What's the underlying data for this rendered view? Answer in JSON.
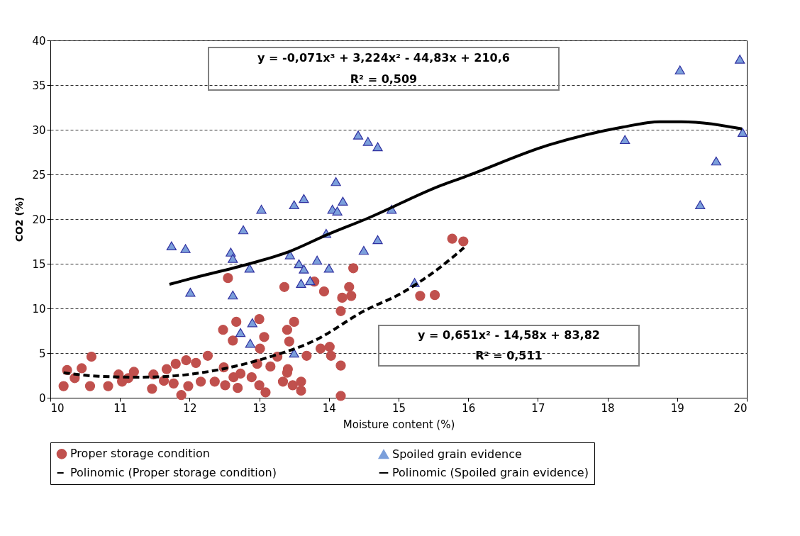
{
  "chart_data": {
    "type": "scatter",
    "xlabel": "Moisture content (%)",
    "ylabel": "CO2 (%)",
    "xlim": [
      10,
      20
    ],
    "xticks": [
      10,
      11,
      12,
      13,
      14,
      15,
      16,
      17,
      18,
      19,
      20
    ],
    "ylim": [
      0,
      40
    ],
    "yticks": [
      0,
      5,
      10,
      15,
      20,
      25,
      30,
      35,
      40
    ],
    "grid": "y",
    "legend": "bottom",
    "annotations": [
      "y = -0,071x³ + 3,224x² - 44,83x + 210,6",
      "R² = 0,509",
      "y = 0,651x² - 14,58x + 83,82",
      "R² = 0,511"
    ],
    "series": [
      {
        "name": "Proper storage condition",
        "marker": "circle",
        "color": "#c0504d",
        "x": [
          10.19,
          10.24,
          10.35,
          10.45,
          10.59,
          10.57,
          10.83,
          10.98,
          11.03,
          11.2,
          11.12,
          11.46,
          11.48,
          11.67,
          11.8,
          11.63,
          11.77,
          11.88,
          11.95,
          12.09,
          12.26,
          11.98,
          12.16,
          12.36,
          12.49,
          12.51,
          12.63,
          12.69,
          12.73,
          12.55,
          12.48,
          12.67,
          12.62,
          13.0,
          13.07,
          13.01,
          12.97,
          13.0,
          13.09,
          13.16,
          12.89,
          13.26,
          13.36,
          13.5,
          13.4,
          13.43,
          13.41,
          13.4,
          13.34,
          13.48,
          13.6,
          13.6,
          13.68,
          13.79,
          13.93,
          13.88,
          14.01,
          14.03,
          14.17,
          14.17,
          14.17,
          14.19,
          14.29,
          14.32,
          14.35,
          15.31,
          15.52,
          15.77,
          15.93
        ],
        "values": [
          1.3,
          3.1,
          2.2,
          3.3,
          4.6,
          1.3,
          1.3,
          2.6,
          1.8,
          2.9,
          2.2,
          1.0,
          2.6,
          3.2,
          3.8,
          1.9,
          1.6,
          0.3,
          4.2,
          3.9,
          4.7,
          1.3,
          1.8,
          1.8,
          3.4,
          1.4,
          2.3,
          1.1,
          2.7,
          13.4,
          7.6,
          8.5,
          6.4,
          8.8,
          6.8,
          5.5,
          3.8,
          1.4,
          0.6,
          3.5,
          2.3,
          4.6,
          12.4,
          8.5,
          7.6,
          6.3,
          3.2,
          2.8,
          1.8,
          1.4,
          1.8,
          0.8,
          4.7,
          13.0,
          11.9,
          5.5,
          5.7,
          4.7,
          3.6,
          0.2,
          9.7,
          11.2,
          12.4,
          11.4,
          14.5,
          11.4,
          11.5,
          17.8,
          17.5
        ]
      },
      {
        "name": "Spoiled grain evidence",
        "marker": "triangle",
        "color": "#7b9fdb",
        "x": [
          11.74,
          11.94,
          12.59,
          12.62,
          12.77,
          12.86,
          12.01,
          12.62,
          13.03,
          13.44,
          13.5,
          13.64,
          13.57,
          13.64,
          13.6,
          13.73,
          13.83,
          14.0,
          13.96,
          14.05,
          14.1,
          14.2,
          14.12,
          14.5,
          14.7,
          14.9,
          15.23,
          14.42,
          14.56,
          14.7,
          18.25,
          19.04,
          19.9,
          19.94,
          19.56,
          19.33,
          12.9,
          12.73,
          12.87,
          13.5
        ],
        "values": [
          17.0,
          16.7,
          16.3,
          15.6,
          18.8,
          14.5,
          11.8,
          11.5,
          21.1,
          16.0,
          21.6,
          22.3,
          15.0,
          14.4,
          12.8,
          13.1,
          15.4,
          14.5,
          18.4,
          21.1,
          24.2,
          22.0,
          20.9,
          16.5,
          17.7,
          21.1,
          12.9,
          29.4,
          28.7,
          28.1,
          28.9,
          36.7,
          37.9,
          29.7,
          26.5,
          21.6,
          8.4,
          7.3,
          6.1,
          5.0
        ]
      },
      {
        "name": "Polinomic (Proper storage condition)",
        "type": "line",
        "line_style": "dashed",
        "marker": "none",
        "color": "#000000",
        "x": [
          10.19,
          10.7,
          11.27,
          11.78,
          12.46,
          13.14,
          13.82,
          14.5,
          15.04,
          15.58,
          15.94
        ],
        "values": [
          2.8,
          2.4,
          2.3,
          2.45,
          3.2,
          4.55,
          6.5,
          9.7,
          11.7,
          14.5,
          16.8
        ]
      },
      {
        "name": "Polinomic (Spoiled grain evidence)",
        "type": "line",
        "line_style": "solid",
        "marker": "none",
        "color": "#000000",
        "x": [
          11.71,
          12.0,
          12.86,
          13.41,
          13.99,
          14.56,
          15.62,
          15.94,
          17.16,
          18.22,
          18.75,
          19.06,
          19.93
        ],
        "values": [
          12.7,
          13.3,
          15.0,
          16.3,
          18.3,
          20.1,
          23.8,
          24.7,
          28.3,
          30.3,
          30.9,
          30.9,
          30.1
        ]
      }
    ]
  }
}
